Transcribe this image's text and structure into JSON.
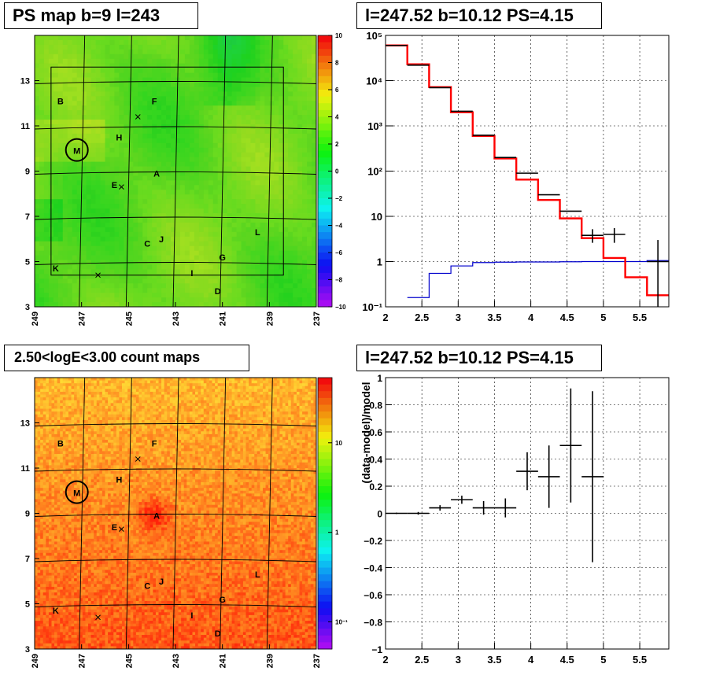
{
  "titles": {
    "ps_map": "PS map b=9 l=243",
    "spectrum": "l=247.52 b=10.12 PS=4.15",
    "count_map": "2.50<logE<3.00 count maps",
    "residual": "l=247.52 b=10.12 PS=4.15"
  },
  "chart_data": [
    {
      "id": "ps_map",
      "type": "heatmap",
      "title": "PS map b=9 l=243",
      "x_ticks": [
        "249",
        "247",
        "245",
        "243",
        "241",
        "239",
        "237"
      ],
      "y_ticks": [
        "3",
        "5",
        "7",
        "9",
        "11",
        "13"
      ],
      "xlim": [
        249,
        237
      ],
      "ylim": [
        3,
        15
      ],
      "colorbar_ticks": [
        "10",
        "8",
        "6",
        "4",
        "2",
        "0",
        "−2",
        "−4",
        "−6",
        "−8",
        "−10"
      ],
      "colorbar_range": [
        -10,
        10
      ],
      "sources": [
        {
          "label": "B",
          "l": 247.9,
          "b": 12.1
        },
        {
          "label": "F",
          "l": 243.9,
          "b": 12.1
        },
        {
          "label": "H",
          "l": 245.4,
          "b": 10.5
        },
        {
          "label": "M",
          "l": 247.2,
          "b": 9.9
        },
        {
          "label": "A",
          "l": 243.8,
          "b": 8.9
        },
        {
          "label": "E",
          "l": 245.6,
          "b": 8.4
        },
        {
          "label": "L",
          "l": 239.5,
          "b": 6.3
        },
        {
          "label": "J",
          "l": 243.6,
          "b": 6.0
        },
        {
          "label": "C",
          "l": 244.2,
          "b": 5.8
        },
        {
          "label": "G",
          "l": 241.0,
          "b": 5.2
        },
        {
          "label": "K",
          "l": 248.1,
          "b": 4.7
        },
        {
          "label": "I",
          "l": 242.3,
          "b": 4.5
        },
        {
          "label": "D",
          "l": 241.2,
          "b": 3.7
        }
      ],
      "circled_source": "M"
    },
    {
      "id": "spectrum",
      "type": "line",
      "title": "l=247.52 b=10.12 PS=4.15",
      "xlim": [
        2,
        5.9
      ],
      "ylim": [
        0.1,
        100000
      ],
      "y_scale": "log",
      "x_ticks": [
        "2",
        "2.5",
        "3",
        "3.5",
        "4",
        "4.5",
        "5",
        "5.5"
      ],
      "y_ticks": [
        "10⁻¹",
        "1",
        "10",
        "10²",
        "10³",
        "10⁴",
        "10⁵"
      ],
      "grid": true,
      "data_points": [
        {
          "x": 2.15,
          "y": 60000
        },
        {
          "x": 2.45,
          "y": 22000
        },
        {
          "x": 2.75,
          "y": 7000
        },
        {
          "x": 3.05,
          "y": 2100
        },
        {
          "x": 3.35,
          "y": 620
        },
        {
          "x": 3.65,
          "y": 200
        },
        {
          "x": 3.95,
          "y": 90
        },
        {
          "x": 4.25,
          "y": 30
        },
        {
          "x": 4.55,
          "y": 13
        },
        {
          "x": 4.85,
          "y": 3.8,
          "err_lo": 2.6,
          "err_hi": 5.2
        },
        {
          "x": 5.15,
          "y": 4,
          "err_lo": 2.6,
          "err_hi": 5.5
        },
        {
          "x": 5.75,
          "y": 1,
          "err_lo": 0.1,
          "err_hi": 3
        }
      ],
      "model_total": [
        {
          "x0": 2.0,
          "x1": 2.3,
          "y": 60000
        },
        {
          "x0": 2.3,
          "x1": 2.6,
          "y": 23000
        },
        {
          "x0": 2.6,
          "x1": 2.9,
          "y": 7200
        },
        {
          "x0": 2.9,
          "x1": 3.2,
          "y": 2000
        },
        {
          "x0": 3.2,
          "x1": 3.5,
          "y": 600
        },
        {
          "x0": 3.5,
          "x1": 3.8,
          "y": 190
        },
        {
          "x0": 3.8,
          "x1": 4.1,
          "y": 65
        },
        {
          "x0": 4.1,
          "x1": 4.4,
          "y": 23
        },
        {
          "x0": 4.4,
          "x1": 4.7,
          "y": 9
        },
        {
          "x0": 4.7,
          "x1": 5.0,
          "y": 3.3
        },
        {
          "x0": 5.0,
          "x1": 5.3,
          "y": 1.2
        },
        {
          "x0": 5.3,
          "x1": 5.6,
          "y": 0.45
        },
        {
          "x0": 5.6,
          "x1": 5.9,
          "y": 0.18
        }
      ],
      "model_ps": [
        {
          "x0": 2.3,
          "x1": 2.6,
          "y": 0.16
        },
        {
          "x0": 2.6,
          "x1": 2.9,
          "y": 0.55
        },
        {
          "x0": 2.9,
          "x1": 3.2,
          "y": 0.8
        },
        {
          "x0": 3.2,
          "x1": 3.5,
          "y": 0.95
        },
        {
          "x0": 3.5,
          "x1": 3.8,
          "y": 0.97
        },
        {
          "x0": 3.8,
          "x1": 4.1,
          "y": 0.98
        },
        {
          "x0": 4.1,
          "x1": 4.4,
          "y": 0.98
        },
        {
          "x0": 4.4,
          "x1": 4.7,
          "y": 0.99
        },
        {
          "x0": 4.7,
          "x1": 5.0,
          "y": 1.0
        },
        {
          "x0": 5.0,
          "x1": 5.3,
          "y": 1.0
        },
        {
          "x0": 5.3,
          "x1": 5.6,
          "y": 1.0
        },
        {
          "x0": 5.6,
          "x1": 5.9,
          "y": 1.05
        }
      ],
      "colors": {
        "data": "#000000",
        "model_total": "#ff0000",
        "model_ps": "#0000cc"
      }
    },
    {
      "id": "count_map",
      "type": "heatmap",
      "title": "2.50<logE<3.00 count maps",
      "x_ticks": [
        "249",
        "247",
        "245",
        "243",
        "241",
        "239",
        "237"
      ],
      "y_ticks": [
        "3",
        "5",
        "7",
        "9",
        "11",
        "13"
      ],
      "xlim": [
        249,
        237
      ],
      "ylim": [
        3,
        15
      ],
      "colorbar_ticks": [
        "10",
        "1",
        "10⁻¹"
      ],
      "colorbar_scale": "log",
      "sources_same_as": "ps_map",
      "circled_source": "M"
    },
    {
      "id": "residual",
      "type": "scatter",
      "title": "l=247.52 b=10.12 PS=4.15",
      "ylabel": "(data-model)/model",
      "xlim": [
        2,
        5.9
      ],
      "ylim": [
        -1,
        1
      ],
      "x_ticks": [
        "2",
        "2.5",
        "3",
        "3.5",
        "4",
        "4.5",
        "5",
        "5.5"
      ],
      "y_ticks": [
        "1",
        "0.8",
        "0.6",
        "0.4",
        "0.2",
        "0",
        "−0.2",
        "−0.4",
        "−0.6",
        "−0.8",
        "−1"
      ],
      "grid": true,
      "points": [
        {
          "x": 2.15,
          "y": 0.0,
          "err": 0.005
        },
        {
          "x": 2.45,
          "y": 0.0,
          "err": 0.01
        },
        {
          "x": 2.75,
          "y": 0.04,
          "err": 0.02
        },
        {
          "x": 3.05,
          "y": 0.1,
          "err": 0.03
        },
        {
          "x": 3.35,
          "y": 0.04,
          "err": 0.05
        },
        {
          "x": 3.65,
          "y": 0.04,
          "err": 0.07
        },
        {
          "x": 3.95,
          "y": 0.31,
          "err": 0.14
        },
        {
          "x": 4.25,
          "y": 0.27,
          "err": 0.23
        },
        {
          "x": 4.55,
          "y": 0.5,
          "err": 0.42
        },
        {
          "x": 4.85,
          "y": 0.27,
          "err": 0.63
        }
      ]
    }
  ]
}
